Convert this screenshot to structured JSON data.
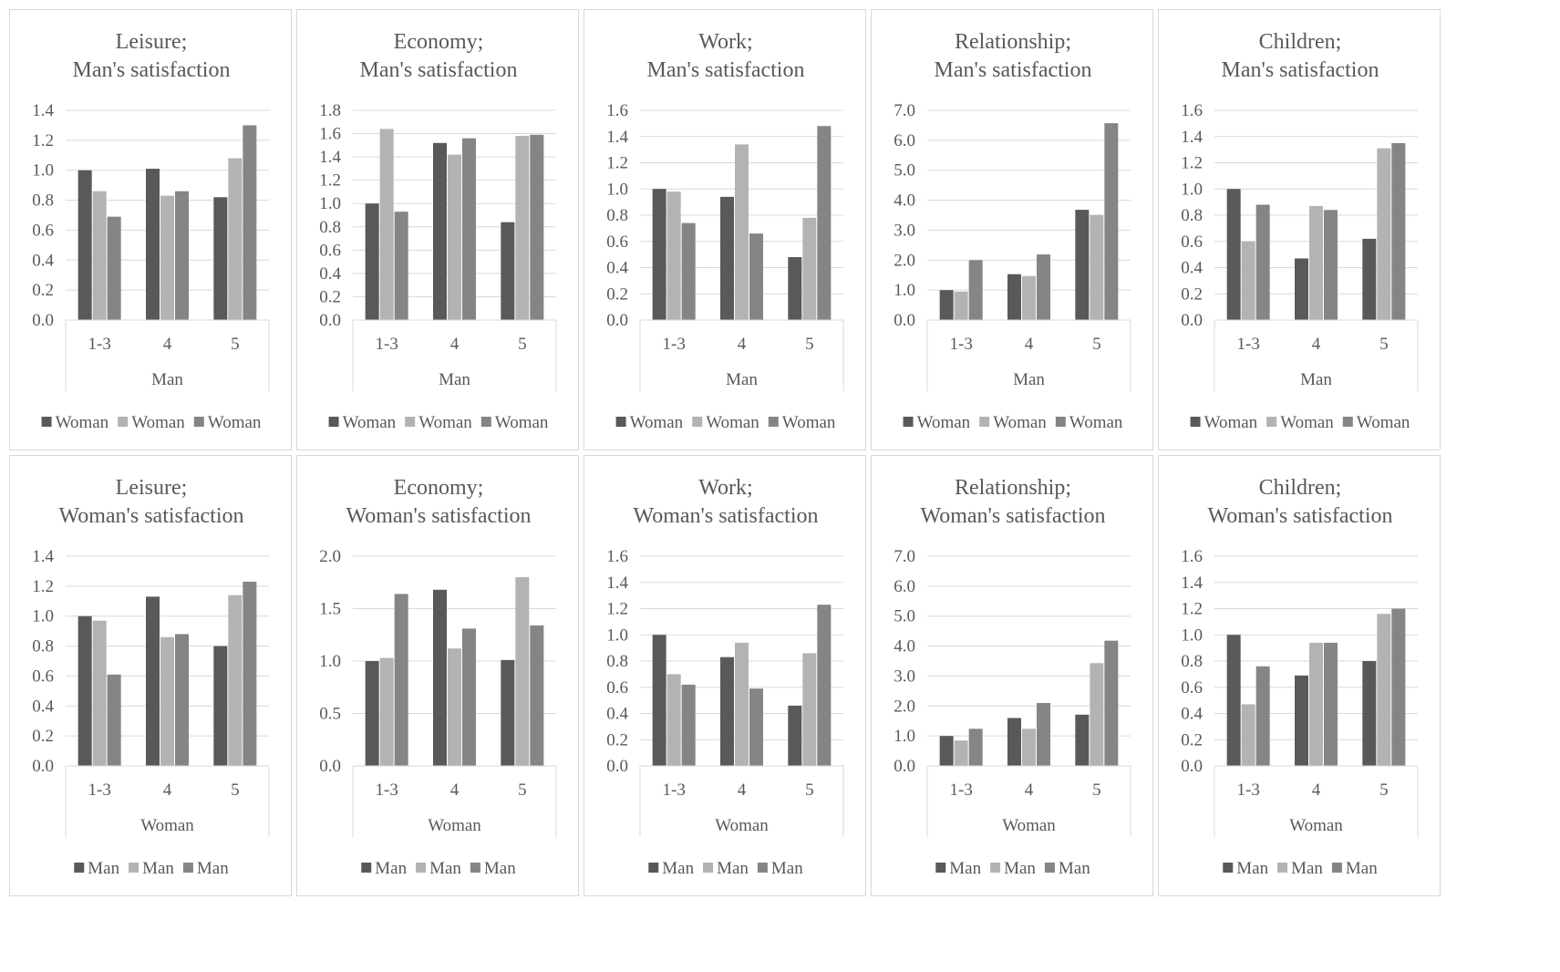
{
  "colors": {
    "series1": "#595959",
    "series2": "#b3b3b3",
    "series3": "#858585",
    "text": "#595959",
    "grid": "#d9d9d9"
  },
  "chart_data": [
    {
      "type": "bar",
      "title": [
        "Leisure;",
        "Man's satisfaction"
      ],
      "xlabel": "Man",
      "categories": [
        "1-3",
        "4",
        "5"
      ],
      "legend": [
        "Woman",
        "Woman",
        "Woman"
      ],
      "ylim": [
        0,
        1.4
      ],
      "yticks": [
        "0.0",
        "0.2",
        "0.4",
        "0.6",
        "0.8",
        "1.0",
        "1.2",
        "1.4"
      ],
      "series": [
        {
          "values": [
            1.0,
            1.01,
            0.82
          ]
        },
        {
          "values": [
            0.86,
            0.83,
            1.08
          ]
        },
        {
          "values": [
            0.69,
            0.86,
            1.3
          ]
        }
      ]
    },
    {
      "type": "bar",
      "title": [
        "Economy;",
        "Man's satisfaction"
      ],
      "xlabel": "Man",
      "categories": [
        "1-3",
        "4",
        "5"
      ],
      "legend": [
        "Woman",
        "Woman",
        "Woman"
      ],
      "ylim": [
        0,
        1.8
      ],
      "yticks": [
        "0.0",
        "0.2",
        "0.4",
        "0.6",
        "0.8",
        "1.0",
        "1.2",
        "1.4",
        "1.6",
        "1.8"
      ],
      "series": [
        {
          "values": [
            1.0,
            1.52,
            0.84
          ]
        },
        {
          "values": [
            1.64,
            1.42,
            1.58
          ]
        },
        {
          "values": [
            0.93,
            1.56,
            1.59
          ]
        }
      ]
    },
    {
      "type": "bar",
      "title": [
        "Work;",
        "Man's satisfaction"
      ],
      "xlabel": "Man",
      "categories": [
        "1-3",
        "4",
        "5"
      ],
      "legend": [
        "Woman",
        "Woman",
        "Woman"
      ],
      "ylim": [
        0,
        1.6
      ],
      "yticks": [
        "0.0",
        "0.2",
        "0.4",
        "0.6",
        "0.8",
        "1.0",
        "1.2",
        "1.4",
        "1.6"
      ],
      "series": [
        {
          "values": [
            1.0,
            0.94,
            0.48
          ]
        },
        {
          "values": [
            0.98,
            1.34,
            0.78
          ]
        },
        {
          "values": [
            0.74,
            0.66,
            1.48
          ]
        }
      ]
    },
    {
      "type": "bar",
      "title": [
        "Relationship;",
        "Man's satisfaction"
      ],
      "xlabel": "Man",
      "categories": [
        "1-3",
        "4",
        "5"
      ],
      "legend": [
        "Woman",
        "Woman",
        "Woman"
      ],
      "ylim": [
        0,
        7.0
      ],
      "yticks": [
        "0.0",
        "1.0",
        "2.0",
        "3.0",
        "4.0",
        "5.0",
        "6.0",
        "7.0"
      ],
      "series": [
        {
          "values": [
            1.0,
            1.53,
            3.68
          ]
        },
        {
          "values": [
            0.95,
            1.47,
            3.51
          ]
        },
        {
          "values": [
            2.0,
            2.19,
            6.57
          ]
        }
      ]
    },
    {
      "type": "bar",
      "title": [
        "Children;",
        "Man's satisfaction"
      ],
      "xlabel": "Man",
      "categories": [
        "1-3",
        "4",
        "5"
      ],
      "legend": [
        "Woman",
        "Woman",
        "Woman"
      ],
      "ylim": [
        0,
        1.6
      ],
      "yticks": [
        "0.0",
        "0.2",
        "0.4",
        "0.6",
        "0.8",
        "1.0",
        "1.2",
        "1.4",
        "1.6"
      ],
      "series": [
        {
          "values": [
            1.0,
            0.47,
            0.62
          ]
        },
        {
          "values": [
            0.6,
            0.87,
            1.31
          ]
        },
        {
          "values": [
            0.88,
            0.84,
            1.35
          ]
        }
      ]
    },
    {
      "type": "bar",
      "title": [
        "Leisure;",
        "Woman's satisfaction"
      ],
      "xlabel": "Woman",
      "categories": [
        "1-3",
        "4",
        "5"
      ],
      "legend": [
        "Man",
        "Man",
        "Man"
      ],
      "ylim": [
        0,
        1.4
      ],
      "yticks": [
        "0.0",
        "0.2",
        "0.4",
        "0.6",
        "0.8",
        "1.0",
        "1.2",
        "1.4"
      ],
      "series": [
        {
          "values": [
            1.0,
            1.13,
            0.8
          ]
        },
        {
          "values": [
            0.97,
            0.86,
            1.14
          ]
        },
        {
          "values": [
            0.61,
            0.88,
            1.23
          ]
        }
      ]
    },
    {
      "type": "bar",
      "title": [
        "Economy;",
        "Woman's satisfaction"
      ],
      "xlabel": "Woman",
      "categories": [
        "1-3",
        "4",
        "5"
      ],
      "legend": [
        "Man",
        "Man",
        "Man"
      ],
      "ylim": [
        0,
        2.0
      ],
      "yticks": [
        "0.0",
        "0.5",
        "1.0",
        "1.5",
        "2.0"
      ],
      "series": [
        {
          "values": [
            1.0,
            1.68,
            1.01
          ]
        },
        {
          "values": [
            1.03,
            1.12,
            1.8
          ]
        },
        {
          "values": [
            1.64,
            1.31,
            1.34
          ]
        }
      ]
    },
    {
      "type": "bar",
      "title": [
        "Work;",
        "Woman's satisfaction"
      ],
      "xlabel": "Woman",
      "categories": [
        "1-3",
        "4",
        "5"
      ],
      "legend": [
        "Man",
        "Man",
        "Man"
      ],
      "ylim": [
        0,
        1.6
      ],
      "yticks": [
        "0.0",
        "0.2",
        "0.4",
        "0.6",
        "0.8",
        "1.0",
        "1.2",
        "1.4",
        "1.6"
      ],
      "series": [
        {
          "values": [
            1.0,
            0.83,
            0.46
          ]
        },
        {
          "values": [
            0.7,
            0.94,
            0.86
          ]
        },
        {
          "values": [
            0.62,
            0.59,
            1.23
          ]
        }
      ]
    },
    {
      "type": "bar",
      "title": [
        "Relationship;",
        "Woman's satisfaction"
      ],
      "xlabel": "Woman",
      "categories": [
        "1-3",
        "4",
        "5"
      ],
      "legend": [
        "Man",
        "Man",
        "Man"
      ],
      "ylim": [
        0,
        7.0
      ],
      "yticks": [
        "0.0",
        "1.0",
        "2.0",
        "3.0",
        "4.0",
        "5.0",
        "6.0",
        "7.0"
      ],
      "series": [
        {
          "values": [
            1.0,
            1.6,
            1.71
          ]
        },
        {
          "values": [
            0.85,
            1.24,
            3.43
          ]
        },
        {
          "values": [
            1.24,
            2.1,
            4.18
          ]
        }
      ]
    },
    {
      "type": "bar",
      "title": [
        "Children;",
        "Woman's satisfaction"
      ],
      "xlabel": "Woman",
      "categories": [
        "1-3",
        "4",
        "5"
      ],
      "legend": [
        "Man",
        "Man",
        "Man"
      ],
      "ylim": [
        0,
        1.6
      ],
      "yticks": [
        "0.0",
        "0.2",
        "0.4",
        "0.6",
        "0.8",
        "1.0",
        "1.2",
        "1.4",
        "1.6"
      ],
      "series": [
        {
          "values": [
            1.0,
            0.69,
            0.8
          ]
        },
        {
          "values": [
            0.47,
            0.94,
            1.16
          ]
        },
        {
          "values": [
            0.76,
            0.94,
            1.2
          ]
        }
      ]
    }
  ]
}
